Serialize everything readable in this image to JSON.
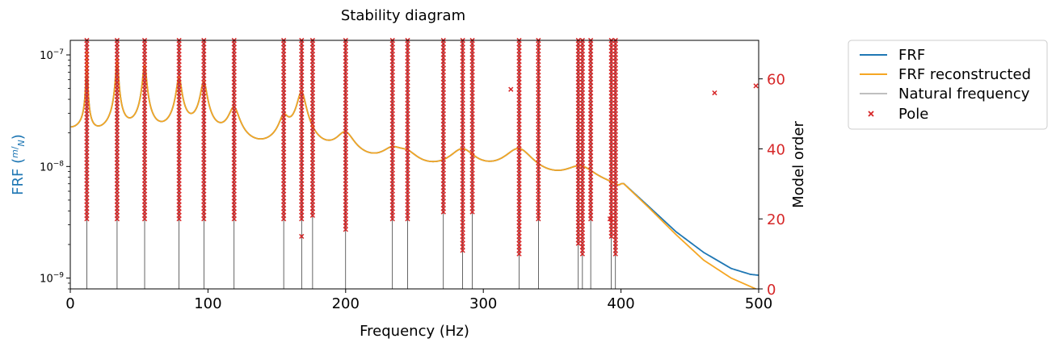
{
  "chart_data": {
    "type": "line",
    "title": "Stability diagram",
    "xlabel": "Frequency (Hz)",
    "ylabel_left_prefix": "FRF (",
    "ylabel_left_frac_num": "m",
    "ylabel_left_frac_den": "N",
    "ylabel_left_suffix": ")",
    "ylabel_right": "Model order",
    "xlim": [
      0,
      500
    ],
    "x_ticks": [
      0,
      100,
      200,
      300,
      400,
      500
    ],
    "y_left_scale": "log",
    "y_left_lim": [
      8e-10,
      1.35e-07
    ],
    "y_left_ticks": [
      {
        "value": 1e-09,
        "base": "10",
        "exp": "−9"
      },
      {
        "value": 1e-08,
        "base": "10",
        "exp": "−8"
      },
      {
        "value": 1e-07,
        "base": "10",
        "exp": "−7"
      }
    ],
    "y_right_lim": [
      0,
      71
    ],
    "y_right_ticks": [
      0,
      20,
      40,
      60
    ],
    "grid": false,
    "legend_position": "outside-right-top",
    "colors": {
      "frf": "#1f77b4",
      "frf_reconstructed": "#f5a623",
      "natural_frequency": "#000000",
      "pole": "#d62728",
      "right_axis": "#d62728",
      "left_label": "#1f77b4"
    },
    "series": [
      {
        "name": "FRF",
        "kind": "line"
      },
      {
        "name": "FRF reconstructed",
        "kind": "line"
      },
      {
        "name": "Natural frequency",
        "kind": "vline"
      },
      {
        "name": "Pole",
        "kind": "scatter"
      }
    ],
    "natural_frequencies": [
      12,
      34,
      54,
      79,
      97,
      119,
      155,
      168,
      176,
      200,
      234,
      245,
      271,
      285,
      292,
      326,
      340,
      369,
      372,
      378,
      393,
      396
    ],
    "frf_peaks": [
      {
        "f": 12,
        "amp": 9e-08,
        "zeta": 0.03
      },
      {
        "f": 34,
        "amp": 7.5e-08,
        "zeta": 0.026
      },
      {
        "f": 54,
        "amp": 6.5e-08,
        "zeta": 0.024
      },
      {
        "f": 79,
        "amp": 4.6e-08,
        "zeta": 0.022
      },
      {
        "f": 97,
        "amp": 4.2e-08,
        "zeta": 0.022
      },
      {
        "f": 119,
        "amp": 2e-08,
        "zeta": 0.03
      },
      {
        "f": 155,
        "amp": 1.2e-08,
        "zeta": 0.02
      },
      {
        "f": 168,
        "amp": 3.5e-08,
        "zeta": 0.018
      },
      {
        "f": 200,
        "amp": 1e-08,
        "zeta": 0.03
      },
      {
        "f": 234,
        "amp": 4.5e-09,
        "zeta": 0.03
      },
      {
        "f": 245,
        "amp": 3.5e-09,
        "zeta": 0.03
      },
      {
        "f": 285,
        "amp": 7e-09,
        "zeta": 0.03
      },
      {
        "f": 326,
        "amp": 8.5e-09,
        "zeta": 0.03
      },
      {
        "f": 371,
        "amp": 4.5e-09,
        "zeta": 0.03
      },
      {
        "f": 395,
        "amp": 1.5e-09,
        "zeta": 0.04
      }
    ],
    "frf_baseline": 1e-09,
    "frf_tail": [
      {
        "f": 400,
        "frf": 7.4e-09,
        "rec": 7.4e-09
      },
      {
        "f": 420,
        "frf": 4.4e-09,
        "rec": 4.3e-09
      },
      {
        "f": 440,
        "frf": 2.6e-09,
        "rec": 2.45e-09
      },
      {
        "f": 460,
        "frf": 1.7e-09,
        "rec": 1.45e-09
      },
      {
        "f": 480,
        "frf": 1.22e-09,
        "rec": 1e-09
      },
      {
        "f": 494,
        "frf": 1.08e-09,
        "rec": 8.4e-10
      },
      {
        "f": 500,
        "frf": 1.06e-09,
        "rec": 7.8e-10
      }
    ],
    "pole_columns": [
      {
        "f": 12,
        "from": 20,
        "to": 71
      },
      {
        "f": 34,
        "from": 20,
        "to": 71
      },
      {
        "f": 54,
        "from": 20,
        "to": 71
      },
      {
        "f": 79,
        "from": 20,
        "to": 71
      },
      {
        "f": 97,
        "from": 20,
        "to": 71
      },
      {
        "f": 119,
        "from": 20,
        "to": 71
      },
      {
        "f": 155,
        "from": 20,
        "to": 71
      },
      {
        "f": 168,
        "from": 20,
        "to": 71
      },
      {
        "f": 176,
        "from": 21,
        "to": 71
      },
      {
        "f": 200,
        "from": 17,
        "to": 71
      },
      {
        "f": 234,
        "from": 20,
        "to": 71
      },
      {
        "f": 245,
        "from": 20,
        "to": 71
      },
      {
        "f": 271,
        "from": 22,
        "to": 71
      },
      {
        "f": 285,
        "from": 11,
        "to": 71
      },
      {
        "f": 292,
        "from": 22,
        "to": 71
      },
      {
        "f": 326,
        "from": 10,
        "to": 71
      },
      {
        "f": 340,
        "from": 20,
        "to": 71
      },
      {
        "f": 369,
        "from": 13,
        "to": 71
      },
      {
        "f": 372,
        "from": 10,
        "to": 71
      },
      {
        "f": 378,
        "from": 20,
        "to": 71
      },
      {
        "f": 393,
        "from": 15,
        "to": 71
      },
      {
        "f": 396,
        "from": 10,
        "to": 71
      }
    ],
    "pole_extras": [
      {
        "f": 168,
        "order": 15
      },
      {
        "f": 320,
        "order": 57
      },
      {
        "f": 372,
        "order": 12
      },
      {
        "f": 392,
        "order": 20
      },
      {
        "f": 468,
        "order": 56
      },
      {
        "f": 498,
        "order": 58
      }
    ]
  }
}
